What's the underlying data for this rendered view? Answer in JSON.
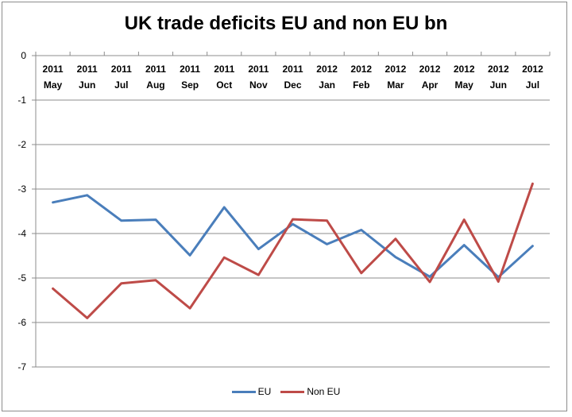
{
  "chart_data": {
    "type": "line",
    "title": "UK trade deficits EU and non EU bn",
    "categories": [
      [
        "2011",
        "May"
      ],
      [
        "2011",
        "Jun"
      ],
      [
        "2011",
        "Jul"
      ],
      [
        "2011",
        "Aug"
      ],
      [
        "2011",
        "Sep"
      ],
      [
        "2011",
        "Oct"
      ],
      [
        "2011",
        "Nov"
      ],
      [
        "2011",
        "Dec"
      ],
      [
        "2012",
        "Jan"
      ],
      [
        "2012",
        "Feb"
      ],
      [
        "2012",
        "Mar"
      ],
      [
        "2012",
        "Apr"
      ],
      [
        "2012",
        "May"
      ],
      [
        "2012",
        "Jun"
      ],
      [
        "2012",
        "Jul"
      ]
    ],
    "ylim": [
      -7,
      0
    ],
    "yticks": [
      "0",
      "-1",
      "-2",
      "-3",
      "-4",
      "-5",
      "-6",
      "-7"
    ],
    "grid": true,
    "legend_position": "bottom",
    "series": [
      {
        "name": "EU",
        "color": "#4a7ebb",
        "values": [
          -3.3,
          -3.14,
          -3.71,
          -3.69,
          -4.49,
          -3.41,
          -4.35,
          -3.79,
          -4.24,
          -3.92,
          -4.53,
          -4.97,
          -4.26,
          -4.98,
          -4.28
        ]
      },
      {
        "name": "Non EU",
        "color": "#be4b48",
        "values": [
          -5.24,
          -5.9,
          -5.12,
          -5.05,
          -5.68,
          -4.54,
          -4.93,
          -3.68,
          -3.71,
          -4.89,
          -4.12,
          -5.09,
          -3.69,
          -5.08,
          -2.88
        ]
      }
    ]
  }
}
